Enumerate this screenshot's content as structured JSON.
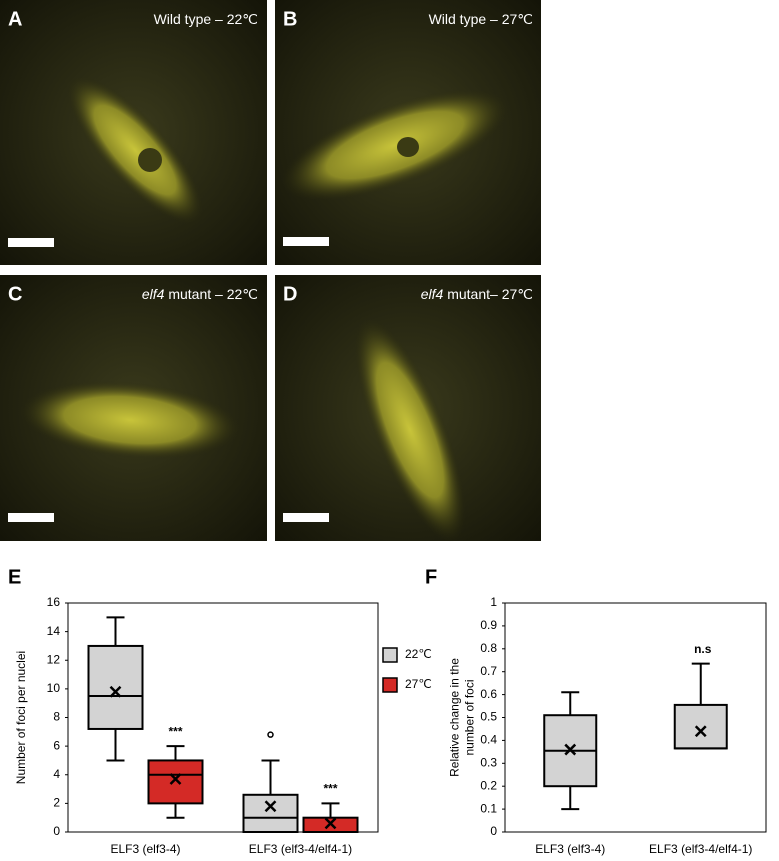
{
  "panels": [
    {
      "letter": "A",
      "caption": "Wild type – 22℃"
    },
    {
      "letter": "B",
      "caption": "Wild type – 27℃"
    },
    {
      "letter": "C",
      "caption_italic": "elf4",
      "caption": " mutant – 22℃"
    },
    {
      "letter": "D",
      "caption_italic": "elf4",
      "caption": " mutant– 27℃"
    }
  ],
  "chart_data": [
    {
      "type": "box",
      "letter": "E",
      "ylabel": [
        "Number of foci per nuclei"
      ],
      "categories": [
        "ELF3 (elf3-4)",
        "ELF3 (elf3-4/elf4-1)"
      ],
      "ylim": [
        0,
        16
      ],
      "yticks": [
        0,
        2,
        4,
        6,
        8,
        10,
        12,
        14,
        16
      ],
      "legend": "right",
      "series": [
        {
          "name": "22℃",
          "color": "#d3d3d3",
          "boxes": [
            {
              "min": 5,
              "q1": 7.2,
              "median": 9.5,
              "q3": 13,
              "max": 15,
              "mean": 9.8
            },
            {
              "min": 0,
              "q1": 0,
              "median": 1,
              "q3": 2.6,
              "max": 5,
              "mean": 1.8,
              "outliers": [
                6.8
              ]
            }
          ]
        },
        {
          "name": "27℃",
          "color": "#d42a26",
          "boxes": [
            {
              "min": 1,
              "q1": 2,
              "median": 4,
              "q3": 5,
              "max": 6,
              "mean": 3.7,
              "annotation": "***"
            },
            {
              "min": 0,
              "q1": 0,
              "median": 0,
              "q3": 1,
              "max": 2,
              "mean": 0.6,
              "annotation": "***"
            }
          ]
        }
      ]
    },
    {
      "type": "box",
      "letter": "F",
      "ylabel": [
        "Relative change in the",
        "number of foci"
      ],
      "categories": [
        "ELF3 (elf3-4)",
        "ELF3 (elf3-4/elf4-1)"
      ],
      "ylim": [
        0,
        1
      ],
      "yticks": [
        0,
        0.1,
        0.2,
        0.3,
        0.4,
        0.5,
        0.6,
        0.7,
        0.8,
        0.9,
        1
      ],
      "series": [
        {
          "color": "#d3d3d3",
          "boxes": [
            {
              "min": 0.1,
              "q1": 0.2,
              "median": 0.355,
              "q3": 0.51,
              "max": 0.61,
              "mean": 0.36
            },
            {
              "min": 0.365,
              "q1": 0.365,
              "median": 0.365,
              "q3": 0.555,
              "max": 0.735,
              "mean": 0.44,
              "annotation": "n.s"
            }
          ]
        }
      ]
    }
  ]
}
